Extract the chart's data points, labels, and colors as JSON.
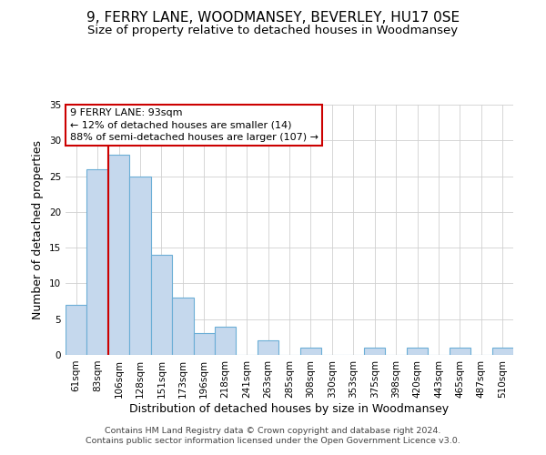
{
  "title": "9, FERRY LANE, WOODMANSEY, BEVERLEY, HU17 0SE",
  "subtitle": "Size of property relative to detached houses in Woodmansey",
  "xlabel": "Distribution of detached houses by size in Woodmansey",
  "ylabel": "Number of detached properties",
  "bin_labels": [
    "61sqm",
    "83sqm",
    "106sqm",
    "128sqm",
    "151sqm",
    "173sqm",
    "196sqm",
    "218sqm",
    "241sqm",
    "263sqm",
    "285sqm",
    "308sqm",
    "330sqm",
    "353sqm",
    "375sqm",
    "398sqm",
    "420sqm",
    "443sqm",
    "465sqm",
    "487sqm",
    "510sqm"
  ],
  "bar_values": [
    7,
    26,
    28,
    25,
    14,
    8,
    3,
    4,
    0,
    2,
    0,
    1,
    0,
    0,
    1,
    0,
    1,
    0,
    1,
    0,
    1
  ],
  "bar_color": "#c5d8ed",
  "bar_edge_color": "#6baed6",
  "vline_color": "#cc0000",
  "annotation_title": "9 FERRY LANE: 93sqm",
  "annotation_line1": "← 12% of detached houses are smaller (14)",
  "annotation_line2": "88% of semi-detached houses are larger (107) →",
  "annotation_box_color": "#ffffff",
  "annotation_box_edge": "#cc0000",
  "ylim": [
    0,
    35
  ],
  "yticks": [
    0,
    5,
    10,
    15,
    20,
    25,
    30,
    35
  ],
  "footer1": "Contains HM Land Registry data © Crown copyright and database right 2024.",
  "footer2": "Contains public sector information licensed under the Open Government Licence v3.0.",
  "title_fontsize": 11,
  "subtitle_fontsize": 9.5,
  "axis_label_fontsize": 9,
  "tick_fontsize": 7.5,
  "annotation_fontsize": 8,
  "footer_fontsize": 6.8
}
